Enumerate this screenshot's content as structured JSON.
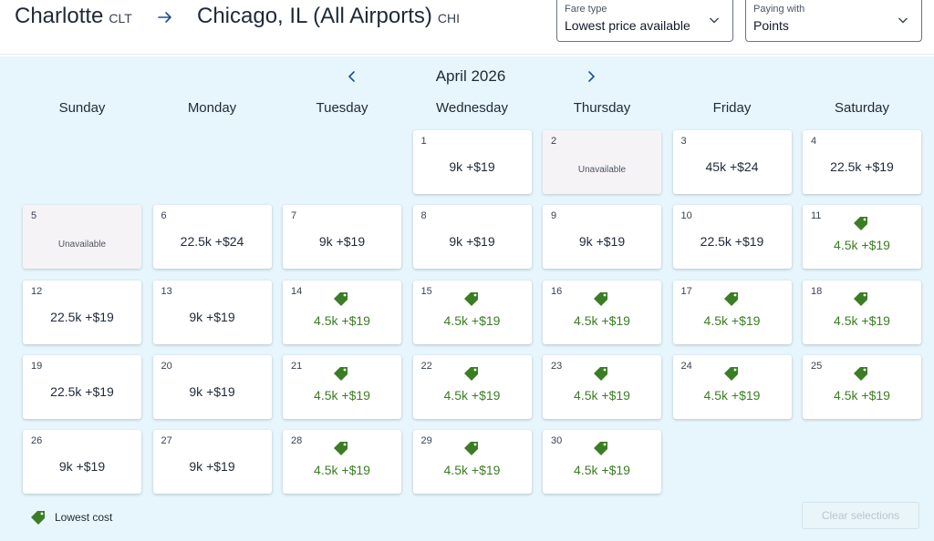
{
  "header": {
    "origin_city": "Charlotte",
    "origin_code": "CLT",
    "dest_city": "Chicago, IL (All Airports)",
    "dest_code": "CHI"
  },
  "fare_type": {
    "label": "Fare type",
    "value": "Lowest price available"
  },
  "paying_with": {
    "label": "Paying with",
    "value": "Points"
  },
  "calendar": {
    "month": "April 2026",
    "weekdays": [
      "Sunday",
      "Monday",
      "Tuesday",
      "Wednesday",
      "Thursday",
      "Friday",
      "Saturday"
    ],
    "start_weekday": 3,
    "days": [
      {
        "day": "1",
        "price": "9k +$19",
        "lowest": false,
        "unavailable": false
      },
      {
        "day": "2",
        "price": "Unavailable",
        "lowest": false,
        "unavailable": true
      },
      {
        "day": "3",
        "price": "45k +$24",
        "lowest": false,
        "unavailable": false
      },
      {
        "day": "4",
        "price": "22.5k +$19",
        "lowest": false,
        "unavailable": false
      },
      {
        "day": "5",
        "price": "Unavailable",
        "lowest": false,
        "unavailable": true
      },
      {
        "day": "6",
        "price": "22.5k +$24",
        "lowest": false,
        "unavailable": false
      },
      {
        "day": "7",
        "price": "9k +$19",
        "lowest": false,
        "unavailable": false
      },
      {
        "day": "8",
        "price": "9k +$19",
        "lowest": false,
        "unavailable": false
      },
      {
        "day": "9",
        "price": "9k +$19",
        "lowest": false,
        "unavailable": false
      },
      {
        "day": "10",
        "price": "22.5k +$19",
        "lowest": false,
        "unavailable": false
      },
      {
        "day": "11",
        "price": "4.5k +$19",
        "lowest": true,
        "unavailable": false
      },
      {
        "day": "12",
        "price": "22.5k +$19",
        "lowest": false,
        "unavailable": false
      },
      {
        "day": "13",
        "price": "9k +$19",
        "lowest": false,
        "unavailable": false
      },
      {
        "day": "14",
        "price": "4.5k +$19",
        "lowest": true,
        "unavailable": false
      },
      {
        "day": "15",
        "price": "4.5k +$19",
        "lowest": true,
        "unavailable": false
      },
      {
        "day": "16",
        "price": "4.5k +$19",
        "lowest": true,
        "unavailable": false
      },
      {
        "day": "17",
        "price": "4.5k +$19",
        "lowest": true,
        "unavailable": false
      },
      {
        "day": "18",
        "price": "4.5k +$19",
        "lowest": true,
        "unavailable": false
      },
      {
        "day": "19",
        "price": "22.5k +$19",
        "lowest": false,
        "unavailable": false
      },
      {
        "day": "20",
        "price": "9k +$19",
        "lowest": false,
        "unavailable": false
      },
      {
        "day": "21",
        "price": "4.5k +$19",
        "lowest": true,
        "unavailable": false
      },
      {
        "day": "22",
        "price": "4.5k +$19",
        "lowest": true,
        "unavailable": false
      },
      {
        "day": "23",
        "price": "4.5k +$19",
        "lowest": true,
        "unavailable": false
      },
      {
        "day": "24",
        "price": "4.5k +$19",
        "lowest": true,
        "unavailable": false
      },
      {
        "day": "25",
        "price": "4.5k +$19",
        "lowest": true,
        "unavailable": false
      },
      {
        "day": "26",
        "price": "9k +$19",
        "lowest": false,
        "unavailable": false
      },
      {
        "day": "27",
        "price": "9k +$19",
        "lowest": false,
        "unavailable": false
      },
      {
        "day": "28",
        "price": "4.5k +$19",
        "lowest": true,
        "unavailable": false
      },
      {
        "day": "29",
        "price": "4.5k +$19",
        "lowest": true,
        "unavailable": false
      },
      {
        "day": "30",
        "price": "4.5k +$19",
        "lowest": true,
        "unavailable": false
      }
    ]
  },
  "legend": {
    "label": "Lowest cost",
    "icon": "price-tag-icon"
  },
  "clear_button": {
    "label": "Clear selections"
  },
  "colors": {
    "panel_bg": "#e7f6fd",
    "lowest_green": "#3b7d24",
    "unavailable_bg": "#f6f3f6",
    "accent_blue": "#1d4f91"
  }
}
